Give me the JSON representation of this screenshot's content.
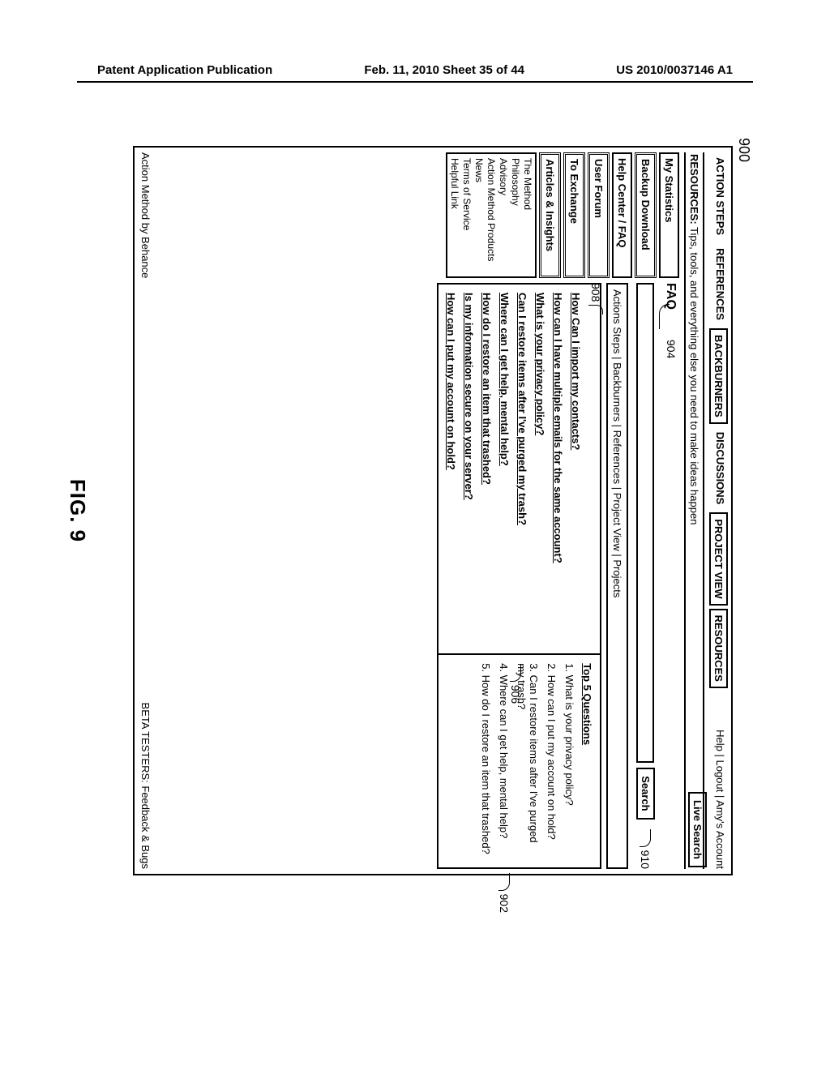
{
  "header": {
    "left": "Patent Application Publication",
    "center": "Feb. 11, 2010   Sheet 35 of 44",
    "right": "US 2010/0037146 A1"
  },
  "refs": {
    "r900": "900",
    "r904": "904",
    "r910": "910",
    "r908": "908",
    "r906": "906",
    "r902": "902"
  },
  "topnav": {
    "tabs": [
      "ACTION STEPS",
      "REFERENCES",
      "BACKBURNERS",
      "DISCUSSIONS",
      "PROJECT VIEW",
      "RESOURCES"
    ],
    "right": "Help | Logout | Amy's Account"
  },
  "live_search": "Live Search",
  "resources_line_label": "RESOURCES:",
  "resources_line_text": " Tips, tools, and everything else you need to make ideas happen",
  "sidebar": {
    "items": [
      {
        "label": "My Statistics",
        "style": "normal"
      },
      {
        "label": "Backup Download",
        "style": "double"
      },
      {
        "label": "Help Center / FAQ",
        "style": "normal"
      },
      {
        "label": "User Forum",
        "style": "double"
      },
      {
        "label": "To Exchange",
        "style": "double"
      },
      {
        "label": "Articles & Insights",
        "style": "double"
      }
    ],
    "sublinks": [
      "The Method",
      "Philosophy",
      "Advisory",
      "Action Method Products",
      "News",
      "Terms of Service",
      "Helpful Link"
    ]
  },
  "faq": {
    "title": "FAQ",
    "search_button": "Search",
    "sub_nav": "Actions Steps  |  Backburners  |  References  |  Project View  |  Projects",
    "left_questions": [
      "How Can I import my contacts?",
      "How can I have multiple emails for the same account?",
      "What is your privacy policy?",
      "Can I restore items after I've purged my trash?",
      "Where can I get help, mental help?",
      "How do I restore an item that trashed?",
      "Is my information secure on your server?",
      "How can I put my account on hold?"
    ],
    "top5_heading": "Top 5 Questions",
    "top5": [
      "1. What is your privacy policy?",
      "2. How can I put my account on hold?",
      "3. Can I restore items after I've purged my trash?",
      "4. Where can I get help, mental help?",
      "5. How do I restore an item that trashed?"
    ]
  },
  "footer": {
    "left": "Action Method by Behance",
    "right": "BETA TESTERS: Feedback & Bugs"
  },
  "figure_label": "FIG. 9"
}
